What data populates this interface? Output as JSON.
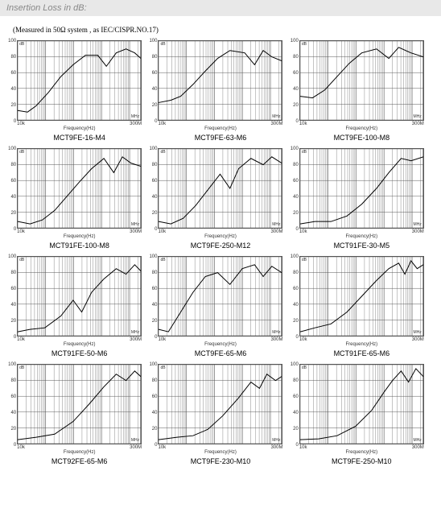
{
  "header": "Insertion Loss in dB:",
  "note": "(Measured in 50Ω system , as IEC/CISPR.NO.17)",
  "axis": {
    "x_label": "Frequency(Hz)",
    "x_ticks": [
      "10k",
      "300M"
    ],
    "y_ticks": [
      0,
      20,
      40,
      60,
      80,
      100
    ],
    "ylim": [
      0,
      100
    ],
    "corner_top_left": "dB",
    "corner_bottom_right": "MHz"
  },
  "style": {
    "grid_color": "#555555",
    "line_color": "#000000",
    "line_width": 1,
    "bg": "#ffffff",
    "header_bg": "#e8e8e8",
    "header_fg": "#888888"
  },
  "decades_major": [
    0,
    0.227,
    0.454,
    0.681,
    0.909
  ],
  "decade_minors": [
    0.301,
    0.477,
    0.602,
    0.699,
    0.778,
    0.845,
    0.903,
    0.954
  ],
  "charts": [
    {
      "title": "MCT9FE-16-M4",
      "series": [
        [
          0,
          12
        ],
        [
          0.08,
          10
        ],
        [
          0.15,
          18
        ],
        [
          0.25,
          35
        ],
        [
          0.35,
          55
        ],
        [
          0.45,
          70
        ],
        [
          0.55,
          82
        ],
        [
          0.65,
          82
        ],
        [
          0.72,
          68
        ],
        [
          0.8,
          85
        ],
        [
          0.88,
          90
        ],
        [
          0.95,
          85
        ],
        [
          1.0,
          78
        ]
      ]
    },
    {
      "title": "MCT9FE-63-M6",
      "series": [
        [
          0,
          22
        ],
        [
          0.1,
          25
        ],
        [
          0.18,
          30
        ],
        [
          0.28,
          45
        ],
        [
          0.38,
          62
        ],
        [
          0.48,
          78
        ],
        [
          0.58,
          88
        ],
        [
          0.7,
          85
        ],
        [
          0.78,
          70
        ],
        [
          0.85,
          88
        ],
        [
          0.92,
          80
        ],
        [
          1.0,
          75
        ]
      ]
    },
    {
      "title": "MCT9FE-100-M8",
      "series": [
        [
          0,
          30
        ],
        [
          0.1,
          28
        ],
        [
          0.2,
          38
        ],
        [
          0.3,
          55
        ],
        [
          0.4,
          72
        ],
        [
          0.5,
          85
        ],
        [
          0.62,
          90
        ],
        [
          0.72,
          78
        ],
        [
          0.8,
          92
        ],
        [
          0.9,
          85
        ],
        [
          1.0,
          80
        ]
      ]
    },
    {
      "title": "MCT91FE-100-M8",
      "series": [
        [
          0,
          8
        ],
        [
          0.1,
          5
        ],
        [
          0.2,
          10
        ],
        [
          0.3,
          22
        ],
        [
          0.4,
          40
        ],
        [
          0.5,
          58
        ],
        [
          0.6,
          75
        ],
        [
          0.7,
          88
        ],
        [
          0.78,
          70
        ],
        [
          0.85,
          90
        ],
        [
          0.92,
          82
        ],
        [
          1.0,
          78
        ]
      ]
    },
    {
      "title": "MCT9FE-250-M12",
      "series": [
        [
          0,
          8
        ],
        [
          0.1,
          5
        ],
        [
          0.2,
          12
        ],
        [
          0.3,
          28
        ],
        [
          0.4,
          48
        ],
        [
          0.5,
          68
        ],
        [
          0.58,
          50
        ],
        [
          0.65,
          75
        ],
        [
          0.75,
          88
        ],
        [
          0.85,
          80
        ],
        [
          0.92,
          90
        ],
        [
          1.0,
          82
        ]
      ]
    },
    {
      "title": "MCT91FE-30-M5",
      "series": [
        [
          0,
          5
        ],
        [
          0.12,
          8
        ],
        [
          0.25,
          8
        ],
        [
          0.38,
          15
        ],
        [
          0.5,
          30
        ],
        [
          0.62,
          50
        ],
        [
          0.72,
          70
        ],
        [
          0.82,
          88
        ],
        [
          0.9,
          85
        ],
        [
          1.0,
          90
        ]
      ]
    },
    {
      "title": "MCT91FE-50-M6",
      "series": [
        [
          0,
          5
        ],
        [
          0.1,
          8
        ],
        [
          0.22,
          10
        ],
        [
          0.35,
          25
        ],
        [
          0.45,
          45
        ],
        [
          0.52,
          30
        ],
        [
          0.6,
          55
        ],
        [
          0.7,
          72
        ],
        [
          0.8,
          85
        ],
        [
          0.88,
          78
        ],
        [
          0.95,
          90
        ],
        [
          1.0,
          82
        ]
      ]
    },
    {
      "title": "MCT9FE-65-M6",
      "series": [
        [
          0,
          8
        ],
        [
          0.08,
          5
        ],
        [
          0.18,
          30
        ],
        [
          0.28,
          55
        ],
        [
          0.38,
          75
        ],
        [
          0.48,
          80
        ],
        [
          0.58,
          65
        ],
        [
          0.68,
          85
        ],
        [
          0.78,
          90
        ],
        [
          0.85,
          75
        ],
        [
          0.92,
          88
        ],
        [
          1.0,
          80
        ]
      ]
    },
    {
      "title": "MCT91FE-65-M6",
      "series": [
        [
          0,
          5
        ],
        [
          0.12,
          10
        ],
        [
          0.25,
          15
        ],
        [
          0.38,
          30
        ],
        [
          0.5,
          50
        ],
        [
          0.62,
          70
        ],
        [
          0.72,
          85
        ],
        [
          0.8,
          92
        ],
        [
          0.85,
          78
        ],
        [
          0.9,
          95
        ],
        [
          0.95,
          85
        ],
        [
          1.0,
          90
        ]
      ]
    },
    {
      "title": "MCT92FE-65-M6",
      "series": [
        [
          0,
          5
        ],
        [
          0.15,
          8
        ],
        [
          0.3,
          12
        ],
        [
          0.45,
          28
        ],
        [
          0.58,
          50
        ],
        [
          0.7,
          72
        ],
        [
          0.8,
          88
        ],
        [
          0.88,
          80
        ],
        [
          0.95,
          92
        ],
        [
          1.0,
          85
        ]
      ]
    },
    {
      "title": "MCT9FE-230-M10",
      "series": [
        [
          0,
          5
        ],
        [
          0.15,
          8
        ],
        [
          0.28,
          10
        ],
        [
          0.4,
          18
        ],
        [
          0.52,
          35
        ],
        [
          0.65,
          58
        ],
        [
          0.75,
          78
        ],
        [
          0.82,
          70
        ],
        [
          0.88,
          88
        ],
        [
          0.95,
          80
        ],
        [
          1.0,
          85
        ]
      ]
    },
    {
      "title": "MCT9FE-250-M10",
      "series": [
        [
          0,
          5
        ],
        [
          0.15,
          6
        ],
        [
          0.3,
          10
        ],
        [
          0.45,
          22
        ],
        [
          0.58,
          42
        ],
        [
          0.68,
          65
        ],
        [
          0.75,
          80
        ],
        [
          0.82,
          92
        ],
        [
          0.88,
          78
        ],
        [
          0.94,
          95
        ],
        [
          1.0,
          85
        ]
      ]
    }
  ]
}
